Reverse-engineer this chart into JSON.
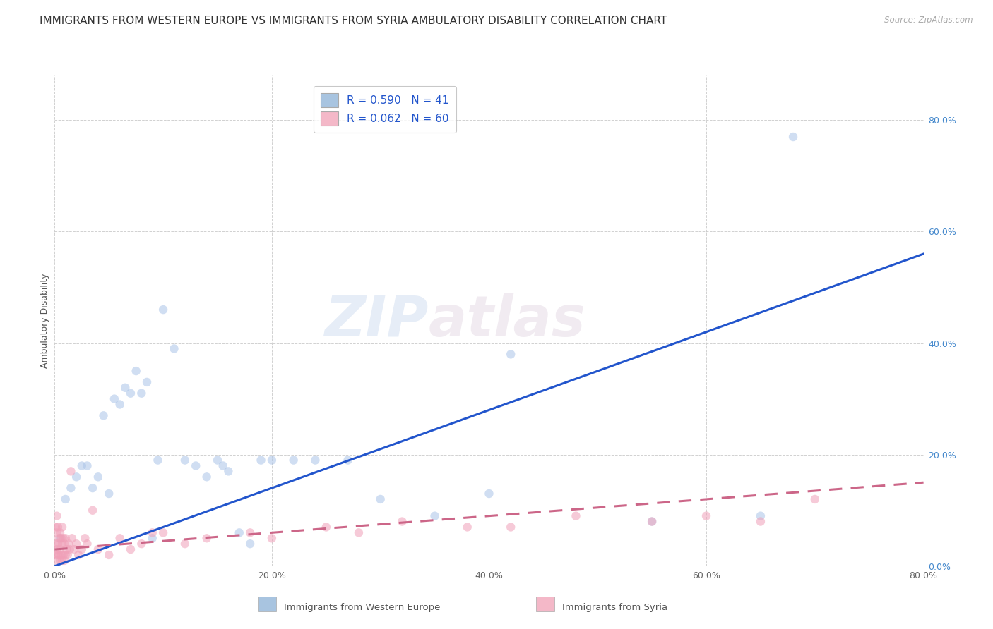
{
  "title": "IMMIGRANTS FROM WESTERN EUROPE VS IMMIGRANTS FROM SYRIA AMBULATORY DISABILITY CORRELATION CHART",
  "source": "Source: ZipAtlas.com",
  "xlabel_blue": "Immigrants from Western Europe",
  "xlabel_pink": "Immigrants from Syria",
  "ylabel": "Ambulatory Disability",
  "xlim": [
    0.0,
    0.8
  ],
  "ylim": [
    0.0,
    0.88
  ],
  "xticks": [
    0.0,
    0.2,
    0.4,
    0.6,
    0.8
  ],
  "yticks_right": [
    0.0,
    0.2,
    0.4,
    0.6,
    0.8
  ],
  "ytick_right_labels": [
    "0.0%",
    "20.0%",
    "40.0%",
    "60.0%",
    "80.0%"
  ],
  "xtick_labels": [
    "0.0%",
    "20.0%",
    "40.0%",
    "60.0%",
    "80.0%"
  ],
  "R_blue": 0.59,
  "N_blue": 41,
  "R_pink": 0.062,
  "N_pink": 60,
  "legend_blue_color": "#a8c4e0",
  "legend_pink_color": "#f4b8c8",
  "blue_line_color": "#2255cc",
  "pink_line_color": "#cc6688",
  "blue_scatter_color": "#aac4e8",
  "pink_scatter_color": "#f0a0b8",
  "watermark_zip": "ZIP",
  "watermark_atlas": "atlas",
  "grid_color": "#cccccc",
  "background_color": "#ffffff",
  "title_fontsize": 11,
  "axis_label_fontsize": 9,
  "tick_fontsize": 9,
  "legend_fontsize": 11,
  "scatter_size": 80,
  "scatter_alpha": 0.55,
  "line_width": 2.2,
  "blue_line_x": [
    0.0,
    0.8
  ],
  "blue_line_y": [
    0.0,
    0.56
  ],
  "pink_line_x": [
    0.0,
    0.8
  ],
  "pink_line_y": [
    0.03,
    0.15
  ],
  "blue_points_x": [
    0.005,
    0.01,
    0.015,
    0.02,
    0.025,
    0.03,
    0.035,
    0.04,
    0.045,
    0.05,
    0.055,
    0.06,
    0.065,
    0.07,
    0.075,
    0.08,
    0.085,
    0.09,
    0.095,
    0.1,
    0.11,
    0.12,
    0.13,
    0.14,
    0.15,
    0.155,
    0.16,
    0.17,
    0.18,
    0.19,
    0.2,
    0.22,
    0.24,
    0.27,
    0.3,
    0.35,
    0.4,
    0.42,
    0.55,
    0.65,
    0.68
  ],
  "blue_points_y": [
    0.05,
    0.12,
    0.14,
    0.16,
    0.18,
    0.18,
    0.14,
    0.16,
    0.27,
    0.13,
    0.3,
    0.29,
    0.32,
    0.31,
    0.35,
    0.31,
    0.33,
    0.05,
    0.19,
    0.46,
    0.39,
    0.19,
    0.18,
    0.16,
    0.19,
    0.18,
    0.17,
    0.06,
    0.04,
    0.19,
    0.19,
    0.19,
    0.19,
    0.19,
    0.12,
    0.09,
    0.13,
    0.38,
    0.08,
    0.09,
    0.77
  ],
  "pink_points_x": [
    0.001,
    0.001,
    0.001,
    0.002,
    0.002,
    0.002,
    0.002,
    0.003,
    0.003,
    0.003,
    0.004,
    0.004,
    0.005,
    0.005,
    0.005,
    0.006,
    0.006,
    0.007,
    0.007,
    0.007,
    0.008,
    0.008,
    0.009,
    0.009,
    0.01,
    0.01,
    0.011,
    0.012,
    0.013,
    0.014,
    0.015,
    0.016,
    0.018,
    0.02,
    0.022,
    0.025,
    0.028,
    0.03,
    0.035,
    0.04,
    0.05,
    0.06,
    0.07,
    0.08,
    0.09,
    0.1,
    0.12,
    0.14,
    0.18,
    0.2,
    0.25,
    0.28,
    0.32,
    0.38,
    0.42,
    0.48,
    0.55,
    0.6,
    0.65,
    0.7
  ],
  "pink_points_y": [
    0.02,
    0.04,
    0.07,
    0.01,
    0.03,
    0.06,
    0.09,
    0.02,
    0.04,
    0.07,
    0.02,
    0.05,
    0.01,
    0.03,
    0.06,
    0.02,
    0.05,
    0.01,
    0.04,
    0.07,
    0.02,
    0.05,
    0.01,
    0.04,
    0.02,
    0.05,
    0.03,
    0.02,
    0.04,
    0.03,
    0.17,
    0.05,
    0.03,
    0.04,
    0.02,
    0.03,
    0.05,
    0.04,
    0.1,
    0.03,
    0.02,
    0.05,
    0.03,
    0.04,
    0.06,
    0.06,
    0.04,
    0.05,
    0.06,
    0.05,
    0.07,
    0.06,
    0.08,
    0.07,
    0.07,
    0.09,
    0.08,
    0.09,
    0.08,
    0.12
  ]
}
